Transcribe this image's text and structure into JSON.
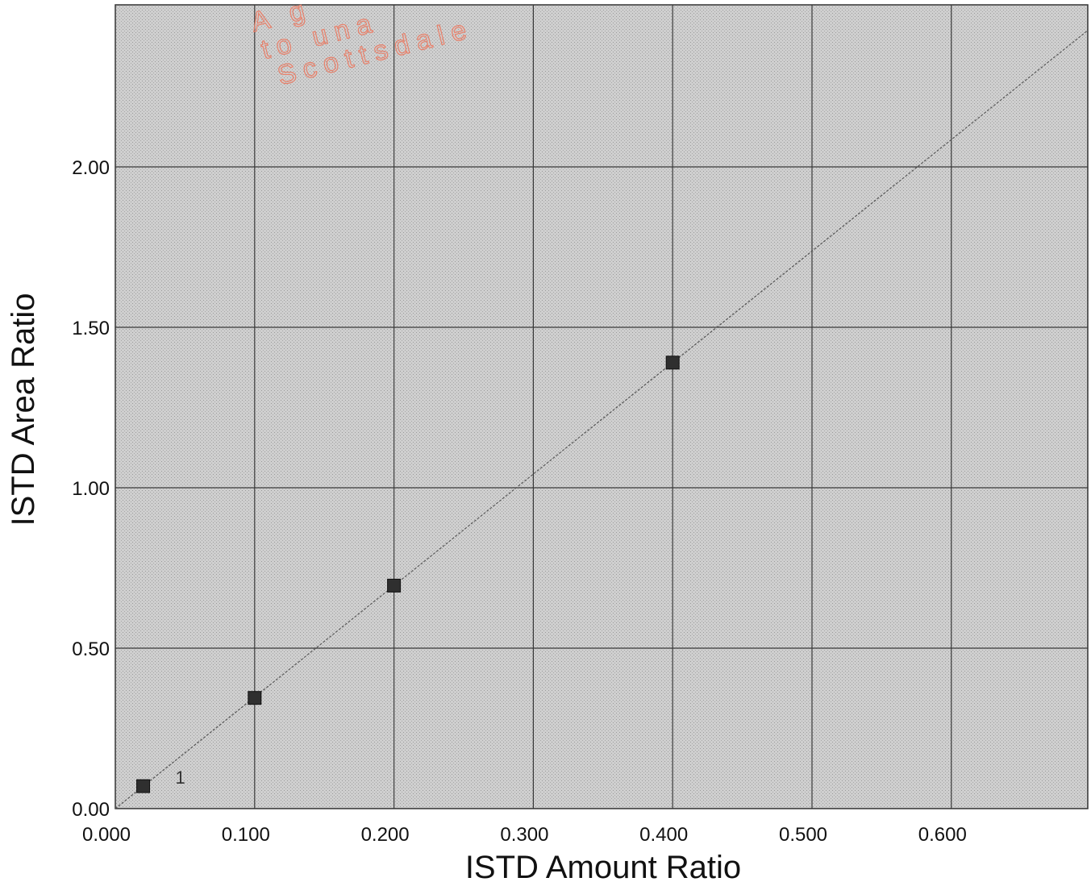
{
  "chart_data": {
    "type": "scatter",
    "xlabel": "ISTD Amount Ratio",
    "ylabel": "ISTD Area Ratio",
    "xlim": [
      0,
      0.7
    ],
    "ylim": [
      0,
      2.5
    ],
    "x_ticks": [
      "0.000",
      "0.100",
      "0.200",
      "0.300",
      "0.400",
      "0.500",
      "0.600"
    ],
    "y_ticks": [
      "0.00",
      "0.50",
      "1.00",
      "1.50",
      "2.00"
    ],
    "x_tick_values": [
      0,
      0.1,
      0.2,
      0.3,
      0.4,
      0.5,
      0.6
    ],
    "y_tick_values": [
      0,
      0.5,
      1.0,
      1.5,
      2.0
    ],
    "grid": true,
    "points": [
      {
        "x": 0.02,
        "y": 0.07,
        "label": "1"
      },
      {
        "x": 0.1,
        "y": 0.345,
        "label": ""
      },
      {
        "x": 0.2,
        "y": 0.695,
        "label": ""
      },
      {
        "x": 0.4,
        "y": 1.39,
        "label": ""
      }
    ],
    "fit_line": {
      "slope": 3.475,
      "intercept": 0.0
    }
  },
  "watermark": {
    "lines": [
      "A g",
      "to una",
      "Scottsdale"
    ]
  }
}
